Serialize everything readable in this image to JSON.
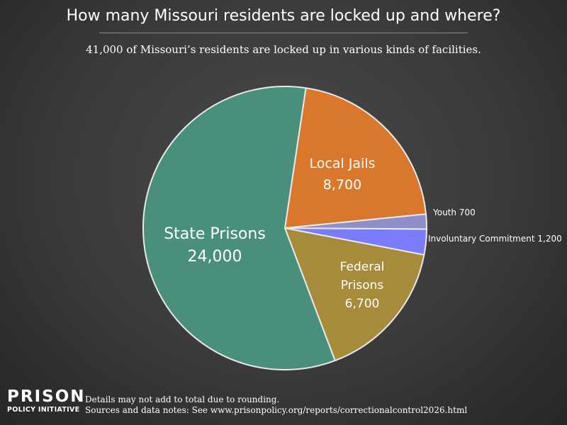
{
  "chart_data": {
    "type": "pie",
    "title": "How many Missouri residents are locked up and where?",
    "subtitle": "41,000 of Missouri’s residents are locked up in various kinds of facilities.",
    "slices": [
      {
        "name": "Local Jails",
        "label_lines": [
          "Local Jails",
          "8,700"
        ],
        "value": 8700,
        "color": "#d9782d",
        "label_position": "inside"
      },
      {
        "name": "Youth",
        "label_lines": [
          "Youth 700"
        ],
        "value": 700,
        "color": "#8f8fc8",
        "label_position": "outside"
      },
      {
        "name": "Involuntary Commitment",
        "label_lines": [
          "Involuntary Commitment 1,200"
        ],
        "value": 1200,
        "color": "#7b7bff",
        "label_position": "outside"
      },
      {
        "name": "Federal Prisons",
        "label_lines": [
          "Federal",
          "Prisons",
          "6,700"
        ],
        "value": 6700,
        "color": "#a68b3a",
        "label_position": "inside"
      },
      {
        "name": "State Prisons",
        "label_lines": [
          "State Prisons",
          "24,000"
        ],
        "value": 24000,
        "color": "#4a8f7c",
        "label_position": "inside"
      }
    ]
  },
  "logo": {
    "line1": "PRISON",
    "line2": "POLICY INITIATIVE"
  },
  "footer": {
    "note1": "Details may not add to total due to rounding.",
    "note2": "Sources and data notes: See www.prisonpolicy.org/reports/correctionalcontrol2026.html"
  }
}
